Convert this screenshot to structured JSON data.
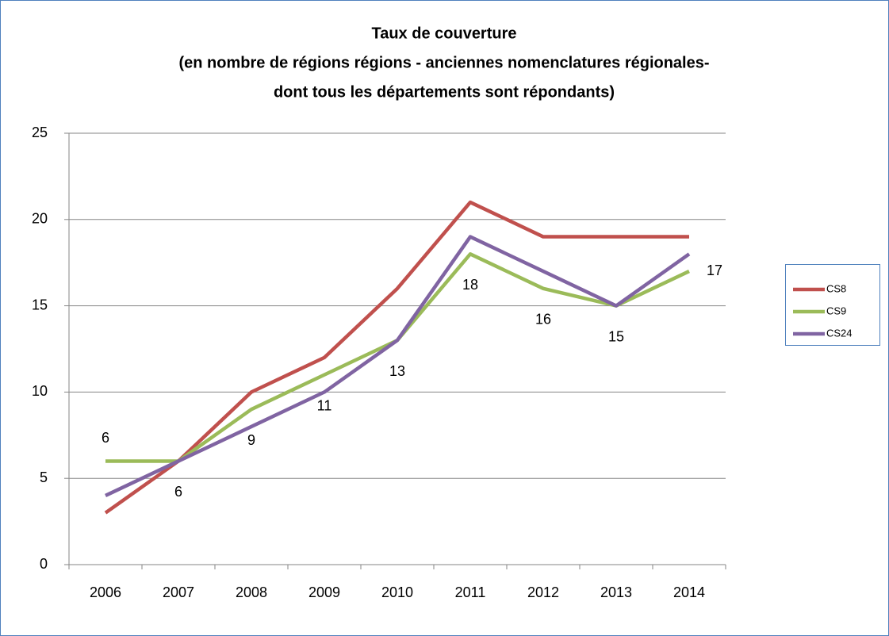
{
  "chart_data": {
    "type": "line",
    "title": [
      "Taux de couverture",
      "(en nombre de régions régions - anciennes nomenclatures régionales-",
      "dont tous les départements sont répondants)"
    ],
    "categories": [
      "2006",
      "2007",
      "2008",
      "2009",
      "2010",
      "2011",
      "2012",
      "2013",
      "2014"
    ],
    "series": [
      {
        "name": "CS8",
        "color": "#c0504d",
        "values": [
          3,
          6,
          10,
          12,
          16,
          21,
          19,
          19,
          19
        ]
      },
      {
        "name": "CS9",
        "color": "#9bbb59",
        "values": [
          6,
          6,
          9,
          11,
          13,
          18,
          16,
          15,
          17
        ],
        "data_labels": true
      },
      {
        "name": "CS24",
        "color": "#8064a2",
        "values": [
          4,
          6,
          8,
          10,
          13,
          19,
          17,
          15,
          18
        ]
      }
    ],
    "ylim": [
      0,
      25
    ],
    "yticks": [
      0,
      5,
      10,
      15,
      20,
      25
    ],
    "grid": true,
    "legend": "right"
  }
}
